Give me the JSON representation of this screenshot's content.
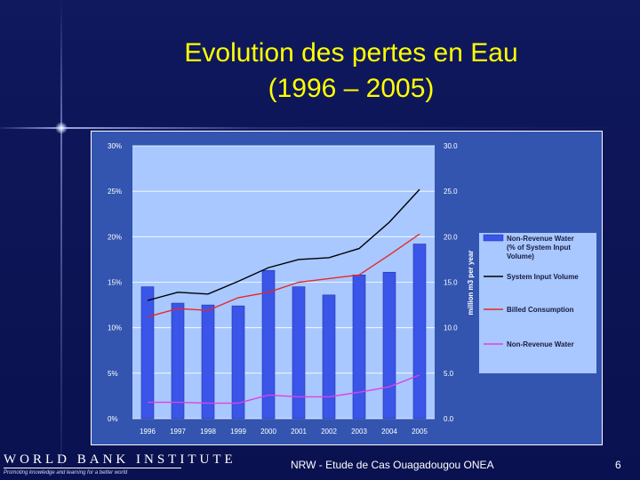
{
  "slide": {
    "title_line1": "Evolution des pertes en Eau",
    "title_line2": "(1996 – 2005)",
    "footer_left": "WORLD BANK INSTITUTE",
    "footer_tagline": "Promoting knowledge and learning for a better world",
    "footer_center": "NRW - Etude de Cas Ouagadougou ONEA",
    "page_number": "6"
  },
  "colors": {
    "background": "#10185e",
    "title": "#ffff00",
    "chart_outer": "#3355b0",
    "plot_area": "#a8c8ff",
    "bars": "#3a55e8",
    "system_input": "#000000",
    "billed": "#e82828",
    "nrw_line": "#e040e0"
  },
  "chart_data": {
    "type": "bar",
    "categories": [
      "1996",
      "1997",
      "1998",
      "1999",
      "2000",
      "2001",
      "2002",
      "2003",
      "2004",
      "2005"
    ],
    "left_ylim": [
      0,
      30
    ],
    "left_ticks": [
      "0%",
      "5%",
      "10%",
      "15%",
      "20%",
      "25%",
      "30%"
    ],
    "right_ylim": [
      0,
      30
    ],
    "right_ticks": [
      "0.0",
      "5.0",
      "10.0",
      "15.0",
      "20.0",
      "25.0",
      "30.0"
    ],
    "ylabel_right": "million m3 per year",
    "grid": true,
    "legend_position": "right",
    "series": [
      {
        "name": "Non-Revenue Water (% of System Input Volume)",
        "kind": "bar",
        "axis": "left",
        "values": [
          14.5,
          12.7,
          12.5,
          12.4,
          16.3,
          14.5,
          13.6,
          15.8,
          16.1,
          19.2
        ]
      },
      {
        "name": "System Input Volume",
        "kind": "line",
        "axis": "right",
        "values": [
          13.0,
          13.9,
          13.7,
          15.1,
          16.6,
          17.5,
          17.7,
          18.7,
          21.6,
          25.2
        ]
      },
      {
        "name": "Billed Consumption",
        "kind": "line",
        "axis": "right",
        "values": [
          11.2,
          12.1,
          11.9,
          13.3,
          13.9,
          15.0,
          15.4,
          15.8,
          18.0,
          20.3
        ]
      },
      {
        "name": "Non-Revenue Water",
        "kind": "line",
        "axis": "right",
        "values": [
          1.8,
          1.8,
          1.7,
          1.7,
          2.6,
          2.4,
          2.4,
          2.9,
          3.5,
          4.8
        ]
      }
    ]
  }
}
